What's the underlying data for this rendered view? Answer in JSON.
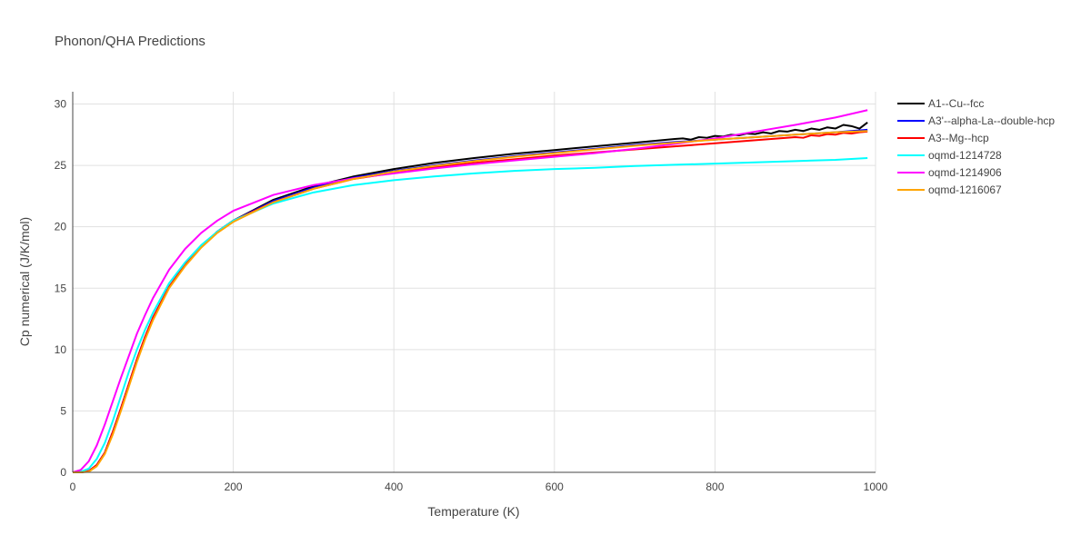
{
  "chart_data": {
    "type": "line",
    "title": "Phonon/QHA Predictions",
    "xlabel": "Temperature (K)",
    "ylabel": "Cp numerical (J/K/mol)",
    "xlim": [
      0,
      1000
    ],
    "ylim": [
      0,
      31
    ],
    "xticks": [
      0,
      200,
      400,
      600,
      800,
      1000
    ],
    "yticks": [
      0,
      5,
      10,
      15,
      20,
      25,
      30
    ],
    "grid": true,
    "legend_position": "top-right",
    "series": [
      {
        "name": "A1--Cu--fcc",
        "color": "#000000",
        "x": [
          0,
          10,
          20,
          30,
          40,
          50,
          60,
          70,
          80,
          90,
          100,
          120,
          140,
          160,
          180,
          200,
          250,
          300,
          350,
          400,
          450,
          500,
          550,
          600,
          650,
          700,
          750,
          760,
          770,
          780,
          790,
          800,
          810,
          820,
          830,
          840,
          850,
          860,
          870,
          880,
          890,
          900,
          910,
          920,
          930,
          940,
          950,
          960,
          970,
          980,
          990
        ],
        "y": [
          0,
          0,
          0.1,
          0.6,
          1.6,
          3.3,
          5.2,
          7.2,
          9.2,
          11.0,
          12.6,
          15.1,
          16.9,
          18.4,
          19.6,
          20.5,
          22.2,
          23.3,
          24.1,
          24.7,
          25.2,
          25.6,
          25.95,
          26.25,
          26.55,
          26.85,
          27.15,
          27.2,
          27.1,
          27.3,
          27.25,
          27.4,
          27.35,
          27.5,
          27.45,
          27.6,
          27.55,
          27.7,
          27.6,
          27.8,
          27.75,
          27.9,
          27.8,
          28.0,
          27.9,
          28.1,
          28.0,
          28.3,
          28.2,
          28.0,
          28.5
        ]
      },
      {
        "name": "A3'--alpha-La--double-hcp",
        "color": "#0000ff",
        "x": [
          0,
          10,
          20,
          30,
          40,
          50,
          60,
          70,
          80,
          90,
          100,
          120,
          140,
          160,
          180,
          200,
          250,
          300,
          350,
          400,
          450,
          500,
          550,
          600,
          650,
          700,
          750,
          800,
          850,
          900,
          950,
          990
        ],
        "y": [
          0,
          0,
          0.1,
          0.6,
          1.6,
          3.3,
          5.2,
          7.2,
          9.2,
          11.0,
          12.6,
          15.1,
          16.9,
          18.4,
          19.6,
          20.5,
          22.1,
          23.2,
          24.0,
          24.55,
          25.0,
          25.4,
          25.75,
          26.05,
          26.35,
          26.65,
          26.9,
          27.1,
          27.3,
          27.5,
          27.7,
          27.9
        ]
      },
      {
        "name": "A3--Mg--hcp",
        "color": "#ff0000",
        "x": [
          0,
          10,
          20,
          30,
          40,
          50,
          60,
          70,
          80,
          90,
          100,
          120,
          140,
          160,
          180,
          200,
          250,
          300,
          350,
          400,
          450,
          500,
          550,
          600,
          650,
          700,
          750,
          800,
          850,
          900,
          910,
          920,
          930,
          940,
          950,
          960,
          970,
          980,
          990
        ],
        "y": [
          0,
          0,
          0.1,
          0.6,
          1.6,
          3.3,
          5.2,
          7.2,
          9.2,
          11.0,
          12.6,
          15.1,
          16.9,
          18.4,
          19.6,
          20.5,
          22.0,
          23.1,
          23.9,
          24.4,
          24.85,
          25.2,
          25.5,
          25.8,
          26.05,
          26.3,
          26.55,
          26.8,
          27.05,
          27.3,
          27.25,
          27.45,
          27.4,
          27.55,
          27.5,
          27.65,
          27.6,
          27.7,
          27.75
        ]
      },
      {
        "name": "oqmd-1214728",
        "color": "#00ffff",
        "x": [
          0,
          10,
          20,
          30,
          40,
          50,
          60,
          70,
          80,
          90,
          100,
          120,
          140,
          160,
          180,
          200,
          250,
          300,
          350,
          400,
          450,
          500,
          550,
          600,
          650,
          700,
          750,
          800,
          850,
          900,
          950,
          990
        ],
        "y": [
          0,
          0.05,
          0.3,
          1.1,
          2.4,
          4.2,
          6.2,
          8.2,
          10.0,
          11.6,
          13.0,
          15.4,
          17.1,
          18.5,
          19.6,
          20.5,
          21.9,
          22.8,
          23.4,
          23.8,
          24.1,
          24.35,
          24.55,
          24.7,
          24.8,
          24.95,
          25.05,
          25.15,
          25.25,
          25.35,
          25.45,
          25.6
        ]
      },
      {
        "name": "oqmd-1214906",
        "color": "#ff00ff",
        "x": [
          0,
          10,
          20,
          30,
          40,
          50,
          60,
          70,
          80,
          90,
          100,
          120,
          140,
          160,
          180,
          200,
          250,
          300,
          350,
          400,
          450,
          500,
          550,
          600,
          650,
          700,
          750,
          800,
          850,
          900,
          950,
          990
        ],
        "y": [
          0,
          0.2,
          0.9,
          2.2,
          3.9,
          5.8,
          7.7,
          9.5,
          11.3,
          12.8,
          14.2,
          16.5,
          18.2,
          19.5,
          20.5,
          21.3,
          22.6,
          23.4,
          23.95,
          24.35,
          24.75,
          25.1,
          25.4,
          25.7,
          26.0,
          26.35,
          26.75,
          27.2,
          27.75,
          28.3,
          28.9,
          29.5
        ]
      },
      {
        "name": "oqmd-1216067",
        "color": "#ffa500",
        "x": [
          0,
          10,
          20,
          30,
          40,
          50,
          60,
          70,
          80,
          90,
          100,
          120,
          140,
          160,
          180,
          200,
          250,
          300,
          350,
          400,
          450,
          500,
          550,
          600,
          650,
          700,
          750,
          800,
          850,
          900,
          950,
          990
        ],
        "y": [
          0,
          0,
          0.05,
          0.5,
          1.5,
          3.1,
          5.0,
          7.0,
          9.0,
          10.8,
          12.4,
          15.0,
          16.8,
          18.3,
          19.5,
          20.4,
          22.0,
          23.1,
          23.9,
          24.5,
          24.95,
          25.35,
          25.7,
          26.0,
          26.3,
          26.6,
          26.85,
          27.1,
          27.3,
          27.5,
          27.7,
          27.8
        ]
      }
    ]
  }
}
